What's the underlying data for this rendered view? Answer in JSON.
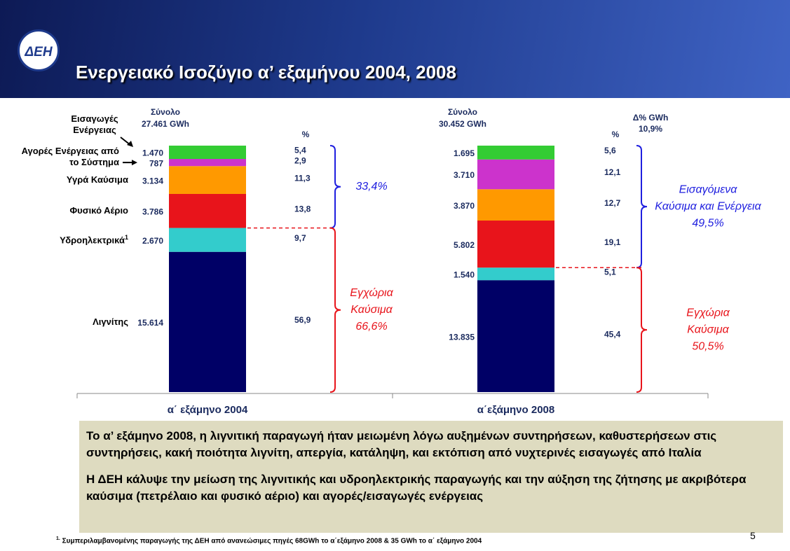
{
  "header": {
    "logo": "ΔΕΗ",
    "title": "Ενεργειακό Ισοζύγιο α’ εξαμήνου 2004, 2008"
  },
  "chart_data": {
    "type": "stacked-bar",
    "categories": [
      "α΄ εξάμηνο 2004",
      "α΄εξάμηνο 2008"
    ],
    "series": [
      {
        "name": "Λιγνίτης",
        "color": "#000066",
        "values": [
          15614,
          13835
        ],
        "value_labels": [
          "15.614",
          "13.835"
        ],
        "percents": [
          56.9,
          45.4
        ],
        "percent_labels": [
          "56,9",
          "45,4"
        ]
      },
      {
        "name": "Υδροηλεκτρικά",
        "color": "#33cccc",
        "values": [
          2670,
          1540
        ],
        "value_labels": [
          "2.670",
          "1.540"
        ],
        "percents": [
          9.7,
          5.1
        ],
        "percent_labels": [
          "9,7",
          "5,1"
        ]
      },
      {
        "name": "Φυσικό Αέριο",
        "color": "#e8141b",
        "values": [
          3786,
          5802
        ],
        "value_labels": [
          "3.786",
          "5.802"
        ],
        "percents": [
          13.8,
          19.1
        ],
        "percent_labels": [
          "13,8",
          "19,1"
        ]
      },
      {
        "name": "Υγρά Καύσιμα",
        "color": "#ff9900",
        "values": [
          3134,
          3870
        ],
        "value_labels": [
          "3.134",
          "3.870"
        ],
        "percents": [
          11.3,
          12.7
        ],
        "percent_labels": [
          "11,3",
          "12,7"
        ]
      },
      {
        "name": "Αγορές Ενέργειας από το Σύστημα",
        "color": "#cc33cc",
        "values": [
          787,
          3710
        ],
        "value_labels": [
          "787",
          "3.710"
        ],
        "percents": [
          2.9,
          12.1
        ],
        "percent_labels": [
          "2,9",
          "12,1"
        ]
      },
      {
        "name": "Εισαγωγές Ενέργειας",
        "color": "#33cc33",
        "values": [
          1470,
          1695
        ],
        "value_labels": [
          "1.470",
          "1.695"
        ],
        "percents": [
          5.4,
          5.6
        ],
        "percent_labels": [
          "5,4",
          "5,6"
        ]
      }
    ],
    "percent_header": "%",
    "total_label": "Σύνολο",
    "totals": [
      27461,
      30452
    ],
    "total_labels": [
      "27.461 GWh",
      "30.452 GWh"
    ],
    "change": {
      "label": "Δ% GWh",
      "value": 10.9,
      "value_label": "10,9%"
    },
    "brackets": [
      {
        "imported": {
          "lines": [],
          "value": 33.4,
          "value_label": "33,4%"
        },
        "domestic": {
          "lines": [
            "Εγχώρια",
            "Καύσιμα"
          ],
          "value": 66.6,
          "value_label": "66,6%"
        }
      },
      {
        "imported": {
          "lines": [
            "Εισαγόμενα",
            "Καύσιμα και Ενέργεια"
          ],
          "value": 49.5,
          "value_label": "49,5%"
        },
        "domestic": {
          "lines": [
            "Εγχώρια",
            "Καύσιμα"
          ],
          "value": 50.5,
          "value_label": "50,5%"
        }
      }
    ]
  },
  "notes": {
    "paragraphs": [
      "Το α’ εξάμηνο 2008, η λιγνιτική παραγωγή ήταν μειωμένη λόγω αυξημένων συντηρήσεων, καθυστερήσεων στις συντηρήσεις, κακή ποιότητα λιγνίτη, απεργία, κατάληψη, και εκτόπιση από νυχτερινές εισαγωγές από Ιταλία",
      "Η ΔΕΗ κάλυψε την μείωση της λιγνιτικής και υδροηλεκτρικής παραγωγής και την αύξηση της ζήτησης με ακριβότερα καύσιμα (πετρέλαιο και φυσικό αέριο) και αγορές/εισαγωγές ενέργειας"
    ]
  },
  "footnote": {
    "mark": "1",
    "marker": "1.",
    "text": "Συμπεριλαμβανομένης παραγωγής της ΔΕΗ από ανανεώσιμες πηγές 68GWh το α΄εξάμηνο 2008 & 35 GWh το α΄ εξάμηνο 2004"
  },
  "page_number": "5"
}
